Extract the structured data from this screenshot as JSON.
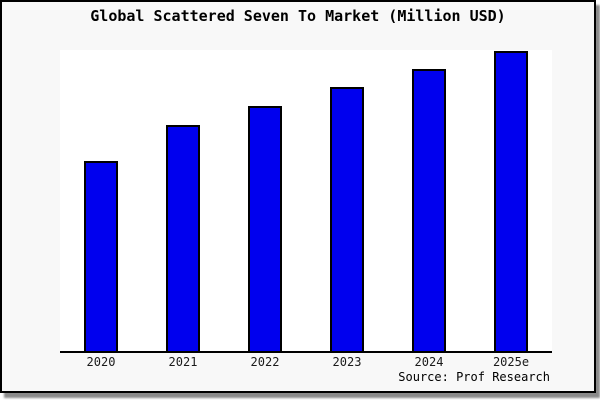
{
  "chart_data": {
    "type": "bar",
    "title": "Global Scattered Seven To Market (Million USD)",
    "categories": [
      "2020",
      "2021",
      "2022",
      "2023",
      "2024",
      "2025e"
    ],
    "values": [
      63.3,
      75.3,
      81.7,
      88.0,
      94.0,
      100.0
    ],
    "value_basis": "y-axis unlabeled; values are relative bar heights with 2025e = 100",
    "xlabel": "",
    "ylabel": "",
    "ylim": [
      0,
      100
    ],
    "grid": false,
    "legend": false,
    "source_label": "Source: Prof Research"
  },
  "colors": {
    "background": "#f8f8f8",
    "plot_background": "#ffffff",
    "bar_fill": "#0000EE",
    "bar_border": "#000000",
    "axis": "#000000",
    "text": "#111111",
    "frame_border": "#000000",
    "shadow": "#8a8a8a"
  }
}
